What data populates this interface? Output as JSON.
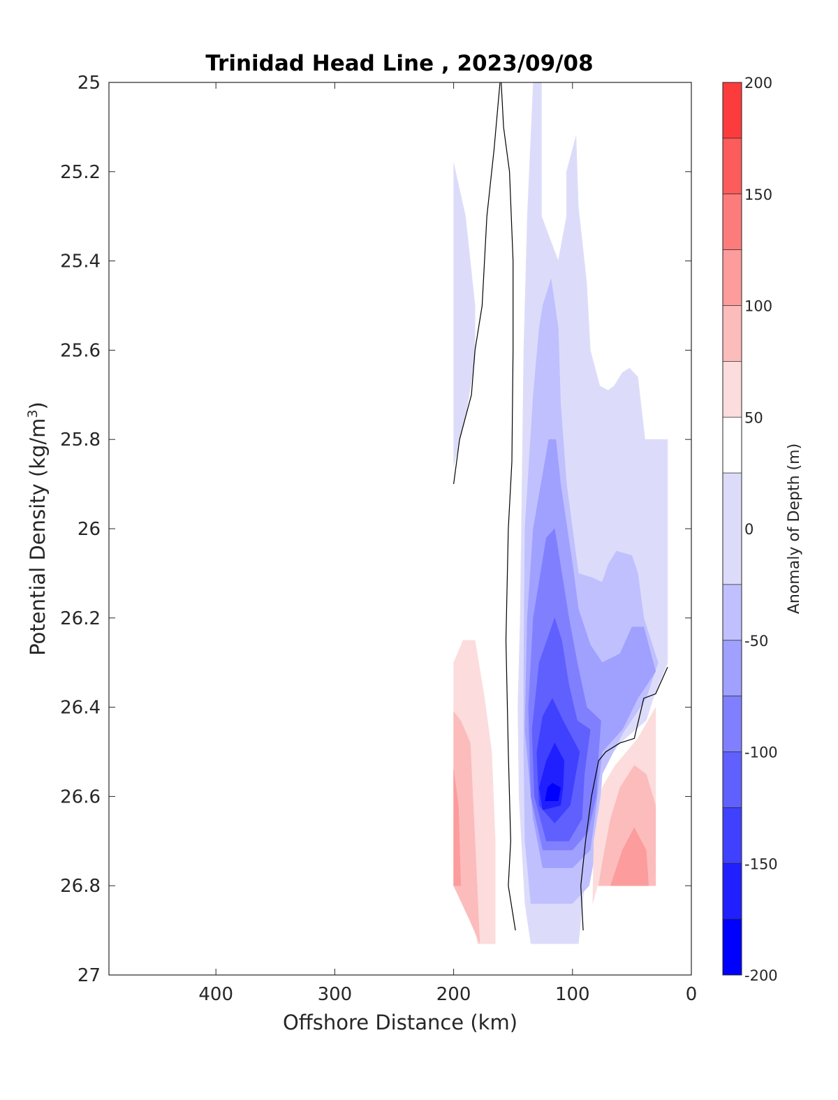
{
  "chart_data": {
    "type": "contour",
    "title": "Trinidad Head Line , 2023/09/08",
    "xlabel": "Offshore Distance (km)",
    "ylabel_main": "Potential Density (kg/m",
    "ylabel_sup": "3",
    "ylabel_close": ")",
    "xlim": [
      490,
      0
    ],
    "x_reversed": true,
    "ylim": [
      25,
      27
    ],
    "y_reversed": true,
    "x_ticks": [
      400,
      300,
      200,
      100,
      0
    ],
    "y_ticks": [
      25,
      25.2,
      25.4,
      25.6,
      25.8,
      26,
      26.2,
      26.4,
      26.6,
      26.8,
      27
    ],
    "y_tick_labels": [
      "25",
      "25.2",
      "25.4",
      "25.6",
      "25.8",
      "26",
      "26.2",
      "26.4",
      "26.6",
      "26.8",
      "27"
    ],
    "grid": false,
    "colorbar": {
      "label": "Anomaly of Depth (m)",
      "range": [
        -200,
        200
      ],
      "ticks": [
        200,
        150,
        100,
        50,
        0,
        -50,
        -100,
        -150,
        -200
      ],
      "tick_labels": [
        "200",
        "150",
        "100",
        "50",
        "0",
        "-50",
        "-100",
        "-150",
        "-200"
      ],
      "levels": [
        -200,
        -175,
        -150,
        -125,
        -100,
        -75,
        -50,
        -25,
        25,
        50,
        75,
        100,
        125,
        150,
        175,
        200
      ],
      "colors": [
        "#0000ff",
        "#2020ff",
        "#4040ff",
        "#6060ff",
        "#8080ff",
        "#a0a0ff",
        "#c0c0ff",
        "#dcdcfa",
        "#ffffff",
        "#fcdcdc",
        "#fcbcbc",
        "#fc9c9c",
        "#fc7c7c",
        "#fc5c5c",
        "#fc3c3c",
        "#ff1414"
      ]
    },
    "regions": [
      {
        "level": -25,
        "color": "#dcdcfa",
        "points": [
          [
            200,
            25.18
          ],
          [
            190,
            25.3
          ],
          [
            182,
            25.5
          ],
          [
            182,
            25.62
          ],
          [
            190,
            25.75
          ],
          [
            200,
            25.86
          ]
        ]
      },
      {
        "level": -25,
        "color": "#dcdcfa",
        "points": [
          [
            133,
            25.0
          ],
          [
            126,
            25.0
          ],
          [
            126,
            25.3
          ],
          [
            112,
            25.4
          ],
          [
            105,
            25.3
          ],
          [
            105,
            25.2
          ],
          [
            97,
            25.12
          ],
          [
            95,
            25.28
          ],
          [
            88,
            25.45
          ],
          [
            85,
            25.6
          ],
          [
            77,
            25.68
          ],
          [
            70,
            25.69
          ],
          [
            65,
            25.68
          ],
          [
            58,
            25.65
          ],
          [
            52,
            25.64
          ],
          [
            45,
            25.66
          ],
          [
            39,
            25.8
          ],
          [
            20,
            25.8
          ],
          [
            20,
            26.3
          ],
          [
            32,
            26.38
          ],
          [
            38,
            26.43
          ],
          [
            60,
            26.48
          ],
          [
            79,
            26.55
          ],
          [
            85,
            26.7
          ],
          [
            90,
            26.8
          ],
          [
            95,
            26.93
          ],
          [
            135,
            26.93
          ],
          [
            140,
            26.84
          ],
          [
            145,
            26.6
          ],
          [
            146,
            26.4
          ],
          [
            144,
            26.2
          ],
          [
            141,
            25.6
          ],
          [
            138,
            25.3
          ]
        ]
      },
      {
        "level": -50,
        "color": "#c0c0ff",
        "points": [
          [
            125,
            25.5
          ],
          [
            118,
            25.44
          ],
          [
            112,
            25.55
          ],
          [
            110,
            25.72
          ],
          [
            105,
            25.9
          ],
          [
            100,
            26.0
          ],
          [
            95,
            26.1
          ],
          [
            83,
            26.11
          ],
          [
            75,
            26.12
          ],
          [
            70,
            26.08
          ],
          [
            63,
            26.05
          ],
          [
            50,
            26.06
          ],
          [
            45,
            26.1
          ],
          [
            40,
            26.2
          ],
          [
            28,
            26.3
          ],
          [
            38,
            26.38
          ],
          [
            58,
            26.46
          ],
          [
            75,
            26.55
          ],
          [
            79,
            26.7
          ],
          [
            86,
            26.8
          ],
          [
            100,
            26.84
          ],
          [
            135,
            26.84
          ],
          [
            140,
            26.7
          ],
          [
            141,
            26.5
          ],
          [
            141,
            26.3
          ],
          [
            140,
            26.0
          ],
          [
            133,
            25.7
          ],
          [
            128,
            25.55
          ]
        ]
      },
      {
        "level": -75,
        "color": "#a0a0ff",
        "points": [
          [
            120,
            25.8
          ],
          [
            114,
            25.8
          ],
          [
            110,
            25.9
          ],
          [
            100,
            26.08
          ],
          [
            95,
            26.18
          ],
          [
            85,
            26.26
          ],
          [
            75,
            26.3
          ],
          [
            60,
            26.28
          ],
          [
            50,
            26.22
          ],
          [
            40,
            26.22
          ],
          [
            30,
            26.32
          ],
          [
            45,
            26.38
          ],
          [
            58,
            26.45
          ],
          [
            75,
            26.5
          ],
          [
            80,
            26.62
          ],
          [
            85,
            26.72
          ],
          [
            100,
            26.76
          ],
          [
            125,
            26.76
          ],
          [
            133,
            26.65
          ],
          [
            140,
            26.45
          ],
          [
            138,
            26.2
          ],
          [
            133,
            26.0
          ]
        ]
      },
      {
        "level": -100,
        "color": "#8080ff",
        "points": [
          [
            122,
            26.02
          ],
          [
            115,
            26.0
          ],
          [
            109,
            26.1
          ],
          [
            103,
            26.2
          ],
          [
            96,
            26.3
          ],
          [
            88,
            26.4
          ],
          [
            76,
            26.43
          ],
          [
            78,
            26.5
          ],
          [
            80,
            26.6
          ],
          [
            87,
            26.68
          ],
          [
            100,
            26.72
          ],
          [
            125,
            26.72
          ],
          [
            135,
            26.6
          ],
          [
            137,
            26.4
          ],
          [
            133,
            26.2
          ]
        ]
      },
      {
        "level": -125,
        "color": "#6060ff",
        "points": [
          [
            115,
            26.2
          ],
          [
            109,
            26.25
          ],
          [
            103,
            26.35
          ],
          [
            96,
            26.43
          ],
          [
            85,
            26.45
          ],
          [
            90,
            26.55
          ],
          [
            92,
            26.65
          ],
          [
            103,
            26.7
          ],
          [
            122,
            26.7
          ],
          [
            132,
            26.6
          ],
          [
            134,
            26.45
          ],
          [
            128,
            26.3
          ]
        ]
      },
      {
        "level": -150,
        "color": "#4040ff",
        "points": [
          [
            117,
            26.38
          ],
          [
            108,
            26.43
          ],
          [
            100,
            26.47
          ],
          [
            94,
            26.5
          ],
          [
            98,
            26.56
          ],
          [
            102,
            26.62
          ],
          [
            115,
            26.66
          ],
          [
            128,
            26.62
          ],
          [
            130,
            26.5
          ],
          [
            125,
            26.42
          ]
        ]
      },
      {
        "level": -175,
        "color": "#2020ff",
        "points": [
          [
            115,
            26.48
          ],
          [
            107,
            26.52
          ],
          [
            108,
            26.58
          ],
          [
            110,
            26.62
          ],
          [
            125,
            26.63
          ],
          [
            128,
            26.58
          ],
          [
            122,
            26.52
          ]
        ]
      },
      {
        "level": -200,
        "color": "#0000ff",
        "points": [
          [
            117,
            26.57
          ],
          [
            110,
            26.58
          ],
          [
            112,
            26.61
          ],
          [
            123,
            26.61
          ],
          [
            121,
            26.58
          ]
        ]
      },
      {
        "level": 25,
        "color": "#fcdcdc",
        "points": [
          [
            200,
            26.3
          ],
          [
            192,
            26.25
          ],
          [
            182,
            26.25
          ],
          [
            174,
            26.38
          ],
          [
            168,
            26.5
          ],
          [
            165,
            26.7
          ],
          [
            165,
            26.93
          ],
          [
            180,
            26.93
          ],
          [
            185,
            26.82
          ],
          [
            200,
            26.8
          ]
        ]
      },
      {
        "level": 50,
        "color": "#fcbcbc",
        "points": [
          [
            200,
            26.41
          ],
          [
            194,
            26.43
          ],
          [
            186,
            26.48
          ],
          [
            182,
            26.7
          ],
          [
            178,
            26.93
          ],
          [
            186,
            26.88
          ],
          [
            200,
            26.8
          ]
        ]
      },
      {
        "level": 75,
        "color": "#fc9c9c",
        "points": [
          [
            200,
            26.54
          ],
          [
            196,
            26.62
          ],
          [
            194,
            26.8
          ],
          [
            200,
            26.8
          ]
        ]
      },
      {
        "level": 25,
        "color": "#fcdcdc",
        "points": [
          [
            30,
            26.4
          ],
          [
            45,
            26.47
          ],
          [
            64,
            26.53
          ],
          [
            75,
            26.58
          ],
          [
            82,
            26.7
          ],
          [
            83,
            26.84
          ],
          [
            79,
            26.8
          ],
          [
            30,
            26.8
          ]
        ]
      },
      {
        "level": 50,
        "color": "#fcbcbc",
        "points": [
          [
            30,
            26.8
          ],
          [
            30,
            26.62
          ],
          [
            38,
            26.55
          ],
          [
            48,
            26.53
          ],
          [
            60,
            26.58
          ],
          [
            68,
            26.65
          ],
          [
            75,
            26.75
          ],
          [
            78,
            26.8
          ]
        ]
      },
      {
        "level": 75,
        "color": "#fc9c9c",
        "points": [
          [
            36,
            26.8
          ],
          [
            38,
            26.72
          ],
          [
            48,
            26.67
          ],
          [
            58,
            26.72
          ],
          [
            68,
            26.8
          ]
        ]
      }
    ],
    "zero_contours": [
      [
        [
          200,
          25.9
        ],
        [
          195,
          25.8
        ],
        [
          185,
          25.7
        ],
        [
          182,
          25.6
        ],
        [
          176,
          25.5
        ],
        [
          172,
          25.3
        ],
        [
          166,
          25.15
        ],
        [
          161,
          25.0
        ]
      ],
      [
        [
          160,
          25.0
        ],
        [
          158,
          25.1
        ],
        [
          153,
          25.2
        ],
        [
          150,
          25.4
        ],
        [
          150,
          25.6
        ],
        [
          151,
          25.85
        ],
        [
          154,
          26.0
        ],
        [
          156,
          26.25
        ],
        [
          154,
          26.5
        ],
        [
          152,
          26.7
        ],
        [
          154,
          26.8
        ],
        [
          148,
          26.9
        ]
      ],
      [
        [
          91,
          26.9
        ],
        [
          93,
          26.8
        ],
        [
          89,
          26.7
        ],
        [
          84,
          26.6
        ],
        [
          78,
          26.52
        ],
        [
          72,
          26.5
        ],
        [
          60,
          26.48
        ],
        [
          48,
          26.47
        ],
        [
          40,
          26.38
        ],
        [
          30,
          26.37
        ],
        [
          20,
          26.31
        ]
      ]
    ]
  }
}
